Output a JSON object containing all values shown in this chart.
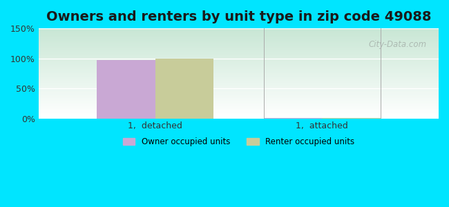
{
  "title": "Owners and renters by unit type in zip code 49088",
  "categories": [
    "1,  detached",
    "1,  attached"
  ],
  "owner_values": [
    97,
    0.5
  ],
  "renter_values": [
    100,
    0.5
  ],
  "owner_color": "#c9a8d4",
  "renter_color": "#c8cc9a",
  "ylim": [
    0,
    150
  ],
  "yticks": [
    0,
    50,
    100,
    150
  ],
  "ytick_labels": [
    "0%",
    "50%",
    "100%",
    "150%"
  ],
  "legend_owner": "Owner occupied units",
  "legend_renter": "Renter occupied units",
  "bar_width": 0.35,
  "bg_outer": "#00e5ff",
  "bg_inner_top": "#c8e6d4",
  "bg_inner_bottom": "#ffffff",
  "watermark": "City-Data.com",
  "title_fontsize": 14,
  "axis_fontsize": 9
}
